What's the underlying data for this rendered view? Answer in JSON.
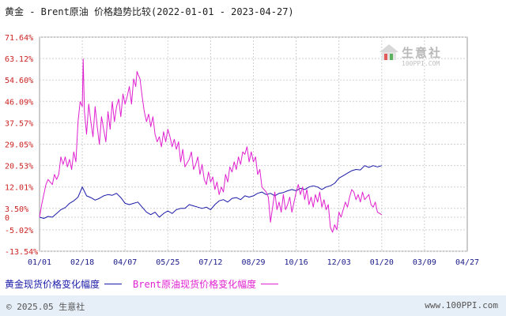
{
  "title": "黄金 - Brent原油 价格趋势比较(2022-01-01 - 2023-04-27)",
  "legend": {
    "gold_label": "黄金现货价格变化幅度",
    "brent_label": "Brent原油现货价格变化幅度"
  },
  "watermark": {
    "name": "生意社",
    "url": "100PPI.COM"
  },
  "footer": {
    "copyright": "© 2025.05 生意社",
    "site": "www.100PPI.com"
  },
  "colors": {
    "gold": "#1a1aa8",
    "brent": "#e020d0",
    "grid": "#d0d0d0",
    "axis": "#888888",
    "footer_bg": "#e6eef7"
  },
  "chart_data": {
    "type": "line",
    "title": "黄金 - Brent原油 价格趋势比较(2022-01-01 - 2023-04-27)",
    "xlabel": "",
    "ylabel": "",
    "y_ticks": [
      "71.64%",
      "63.12%",
      "54.60%",
      "46.09%",
      "37.57%",
      "29.05%",
      "20.53%",
      "12.01%",
      "3.50%",
      "0",
      "-5.02%",
      "-13.54%"
    ],
    "y_tick_values": [
      71.64,
      63.12,
      54.6,
      46.09,
      37.57,
      29.05,
      20.53,
      12.01,
      3.5,
      0,
      -5.02,
      -13.54
    ],
    "x_ticks": [
      "01/01",
      "02/18",
      "04/07",
      "05/25",
      "07/12",
      "08/29",
      "10/16",
      "12/03",
      "01/20",
      "03/09",
      "04/27"
    ],
    "ylim": [
      -13.54,
      71.64
    ],
    "grid": true,
    "legend_position": "bottom-left",
    "series": [
      {
        "name": "黄金现货价格变化幅度",
        "color": "#1a1aa8",
        "values": [
          [
            0,
            0
          ],
          [
            0.1,
            -0.5
          ],
          [
            0.2,
            0.3
          ],
          [
            0.3,
            0
          ],
          [
            0.4,
            1.5
          ],
          [
            0.5,
            3.0
          ],
          [
            0.6,
            3.8
          ],
          [
            0.7,
            5.5
          ],
          [
            0.8,
            6.5
          ],
          [
            0.9,
            8.0
          ],
          [
            1.0,
            12.0
          ],
          [
            1.1,
            8.5
          ],
          [
            1.2,
            7.8
          ],
          [
            1.3,
            6.8
          ],
          [
            1.4,
            7.5
          ],
          [
            1.5,
            8.5
          ],
          [
            1.6,
            9.0
          ],
          [
            1.7,
            8.7
          ],
          [
            1.8,
            9.5
          ],
          [
            1.9,
            7.8
          ],
          [
            2.0,
            5.5
          ],
          [
            2.1,
            5.0
          ],
          [
            2.2,
            5.5
          ],
          [
            2.3,
            6.0
          ],
          [
            2.4,
            4.0
          ],
          [
            2.5,
            2.0
          ],
          [
            2.6,
            1.0
          ],
          [
            2.7,
            2.0
          ],
          [
            2.8,
            0
          ],
          [
            2.9,
            1.5
          ],
          [
            3.0,
            2.5
          ],
          [
            3.1,
            1.5
          ],
          [
            3.2,
            3.0
          ],
          [
            3.3,
            3.5
          ],
          [
            3.4,
            3.5
          ],
          [
            3.5,
            5.0
          ],
          [
            3.6,
            4.5
          ],
          [
            3.7,
            4.0
          ],
          [
            3.8,
            3.5
          ],
          [
            3.9,
            4.0
          ],
          [
            4.0,
            3.0
          ],
          [
            4.1,
            5.0
          ],
          [
            4.2,
            6.5
          ],
          [
            4.3,
            7.0
          ],
          [
            4.4,
            6.0
          ],
          [
            4.5,
            7.5
          ],
          [
            4.6,
            7.8
          ],
          [
            4.7,
            7.0
          ],
          [
            4.8,
            8.5
          ],
          [
            4.9,
            8.0
          ],
          [
            5.0,
            8.5
          ],
          [
            5.1,
            9.5
          ],
          [
            5.2,
            10.0
          ],
          [
            5.3,
            9.0
          ],
          [
            5.4,
            9.5
          ],
          [
            5.5,
            8.5
          ],
          [
            5.6,
            9.5
          ],
          [
            5.7,
            9.8
          ],
          [
            5.8,
            10.5
          ],
          [
            5.9,
            11.0
          ],
          [
            6.0,
            10.5
          ],
          [
            6.1,
            11.5
          ],
          [
            6.2,
            11.0
          ],
          [
            6.3,
            12.0
          ],
          [
            6.4,
            12.5
          ],
          [
            6.5,
            12.0
          ],
          [
            6.6,
            11.0
          ],
          [
            6.7,
            12.0
          ],
          [
            6.8,
            12.5
          ],
          [
            6.9,
            13.5
          ],
          [
            7.0,
            15.5
          ],
          [
            7.1,
            16.5
          ],
          [
            7.2,
            17.5
          ],
          [
            7.3,
            18.5
          ],
          [
            7.4,
            19.0
          ],
          [
            7.5,
            18.8
          ],
          [
            7.6,
            20.5
          ],
          [
            7.7,
            19.8
          ],
          [
            7.8,
            20.5
          ],
          [
            7.9,
            20.0
          ],
          [
            8.0,
            20.5
          ]
        ]
      },
      {
        "name": "Brent原油现货价格变化幅度",
        "color": "#e020d0",
        "values": [
          [
            0,
            0
          ],
          [
            0.05,
            5
          ],
          [
            0.1,
            9
          ],
          [
            0.15,
            13
          ],
          [
            0.2,
            15
          ],
          [
            0.25,
            14
          ],
          [
            0.3,
            13
          ],
          [
            0.35,
            17
          ],
          [
            0.4,
            15
          ],
          [
            0.45,
            17
          ],
          [
            0.5,
            24
          ],
          [
            0.55,
            21
          ],
          [
            0.6,
            24
          ],
          [
            0.65,
            20
          ],
          [
            0.7,
            23
          ],
          [
            0.75,
            19
          ],
          [
            0.8,
            26
          ],
          [
            0.85,
            22
          ],
          [
            0.9,
            38
          ],
          [
            0.95,
            46
          ],
          [
            1.0,
            44
          ],
          [
            1.02,
            63
          ],
          [
            1.05,
            42
          ],
          [
            1.1,
            33
          ],
          [
            1.15,
            45
          ],
          [
            1.2,
            38
          ],
          [
            1.25,
            32
          ],
          [
            1.3,
            44
          ],
          [
            1.35,
            36
          ],
          [
            1.4,
            29
          ],
          [
            1.45,
            40
          ],
          [
            1.5,
            35
          ],
          [
            1.55,
            30
          ],
          [
            1.6,
            42
          ],
          [
            1.65,
            35
          ],
          [
            1.7,
            46
          ],
          [
            1.75,
            38
          ],
          [
            1.8,
            44
          ],
          [
            1.85,
            47
          ],
          [
            1.9,
            40
          ],
          [
            1.95,
            49
          ],
          [
            2.0,
            45
          ],
          [
            2.05,
            48
          ],
          [
            2.1,
            52
          ],
          [
            2.15,
            45
          ],
          [
            2.2,
            55
          ],
          [
            2.25,
            52
          ],
          [
            2.28,
            58
          ],
          [
            2.3,
            57
          ],
          [
            2.35,
            55
          ],
          [
            2.4,
            48
          ],
          [
            2.45,
            42
          ],
          [
            2.5,
            38
          ],
          [
            2.55,
            41
          ],
          [
            2.6,
            36
          ],
          [
            2.65,
            40
          ],
          [
            2.7,
            33
          ],
          [
            2.75,
            30
          ],
          [
            2.8,
            32
          ],
          [
            2.85,
            28
          ],
          [
            2.9,
            34
          ],
          [
            2.95,
            30
          ],
          [
            3.0,
            35
          ],
          [
            3.05,
            32
          ],
          [
            3.1,
            28
          ],
          [
            3.15,
            31
          ],
          [
            3.2,
            27
          ],
          [
            3.25,
            30
          ],
          [
            3.3,
            22
          ],
          [
            3.35,
            27
          ],
          [
            3.4,
            20
          ],
          [
            3.5,
            23
          ],
          [
            3.55,
            26
          ],
          [
            3.6,
            19
          ],
          [
            3.65,
            21
          ],
          [
            3.7,
            24
          ],
          [
            3.75,
            17
          ],
          [
            3.8,
            21
          ],
          [
            3.85,
            15
          ],
          [
            3.9,
            13
          ],
          [
            3.95,
            18
          ],
          [
            4.0,
            14
          ],
          [
            4.05,
            16
          ],
          [
            4.1,
            11
          ],
          [
            4.15,
            14
          ],
          [
            4.2,
            9
          ],
          [
            4.25,
            12
          ],
          [
            4.3,
            10
          ],
          [
            4.35,
            17
          ],
          [
            4.4,
            14
          ],
          [
            4.45,
            20
          ],
          [
            4.5,
            18
          ],
          [
            4.55,
            22
          ],
          [
            4.6,
            19
          ],
          [
            4.65,
            24
          ],
          [
            4.7,
            21
          ],
          [
            4.75,
            26
          ],
          [
            4.8,
            25
          ],
          [
            4.85,
            28
          ],
          [
            4.9,
            22
          ],
          [
            4.95,
            26
          ],
          [
            5.0,
            22
          ],
          [
            5.05,
            24
          ],
          [
            5.1,
            17
          ],
          [
            5.15,
            19
          ],
          [
            5.2,
            12
          ],
          [
            5.25,
            11
          ],
          [
            5.3,
            10
          ],
          [
            5.35,
            8
          ],
          [
            5.4,
            -2
          ],
          [
            5.45,
            4
          ],
          [
            5.5,
            10
          ],
          [
            5.55,
            3
          ],
          [
            5.6,
            6
          ],
          [
            5.65,
            2
          ],
          [
            5.7,
            9
          ],
          [
            5.75,
            3
          ],
          [
            5.8,
            5
          ],
          [
            5.85,
            8
          ],
          [
            5.9,
            2
          ],
          [
            5.95,
            6
          ],
          [
            6.0,
            10
          ],
          [
            6.05,
            13
          ],
          [
            6.1,
            9
          ],
          [
            6.15,
            12
          ],
          [
            6.2,
            7
          ],
          [
            6.25,
            11
          ],
          [
            6.3,
            5
          ],
          [
            6.35,
            8
          ],
          [
            6.4,
            4
          ],
          [
            6.45,
            9
          ],
          [
            6.5,
            6
          ],
          [
            6.55,
            10
          ],
          [
            6.6,
            4
          ],
          [
            6.65,
            7
          ],
          [
            6.7,
            3
          ],
          [
            6.75,
            5
          ],
          [
            6.8,
            -4
          ],
          [
            6.85,
            -6
          ],
          [
            6.9,
            -3
          ],
          [
            6.95,
            -5
          ],
          [
            7.0,
            2
          ],
          [
            7.05,
            0
          ],
          [
            7.1,
            3
          ],
          [
            7.15,
            6
          ],
          [
            7.2,
            4
          ],
          [
            7.25,
            8
          ],
          [
            7.3,
            11
          ],
          [
            7.35,
            10
          ],
          [
            7.4,
            7
          ],
          [
            7.45,
            9
          ],
          [
            7.5,
            6
          ],
          [
            7.55,
            10
          ],
          [
            7.6,
            7
          ],
          [
            7.7,
            9
          ],
          [
            7.75,
            5
          ],
          [
            7.8,
            4
          ],
          [
            7.85,
            6
          ],
          [
            7.9,
            2
          ],
          [
            8.0,
            1
          ]
        ]
      }
    ]
  }
}
